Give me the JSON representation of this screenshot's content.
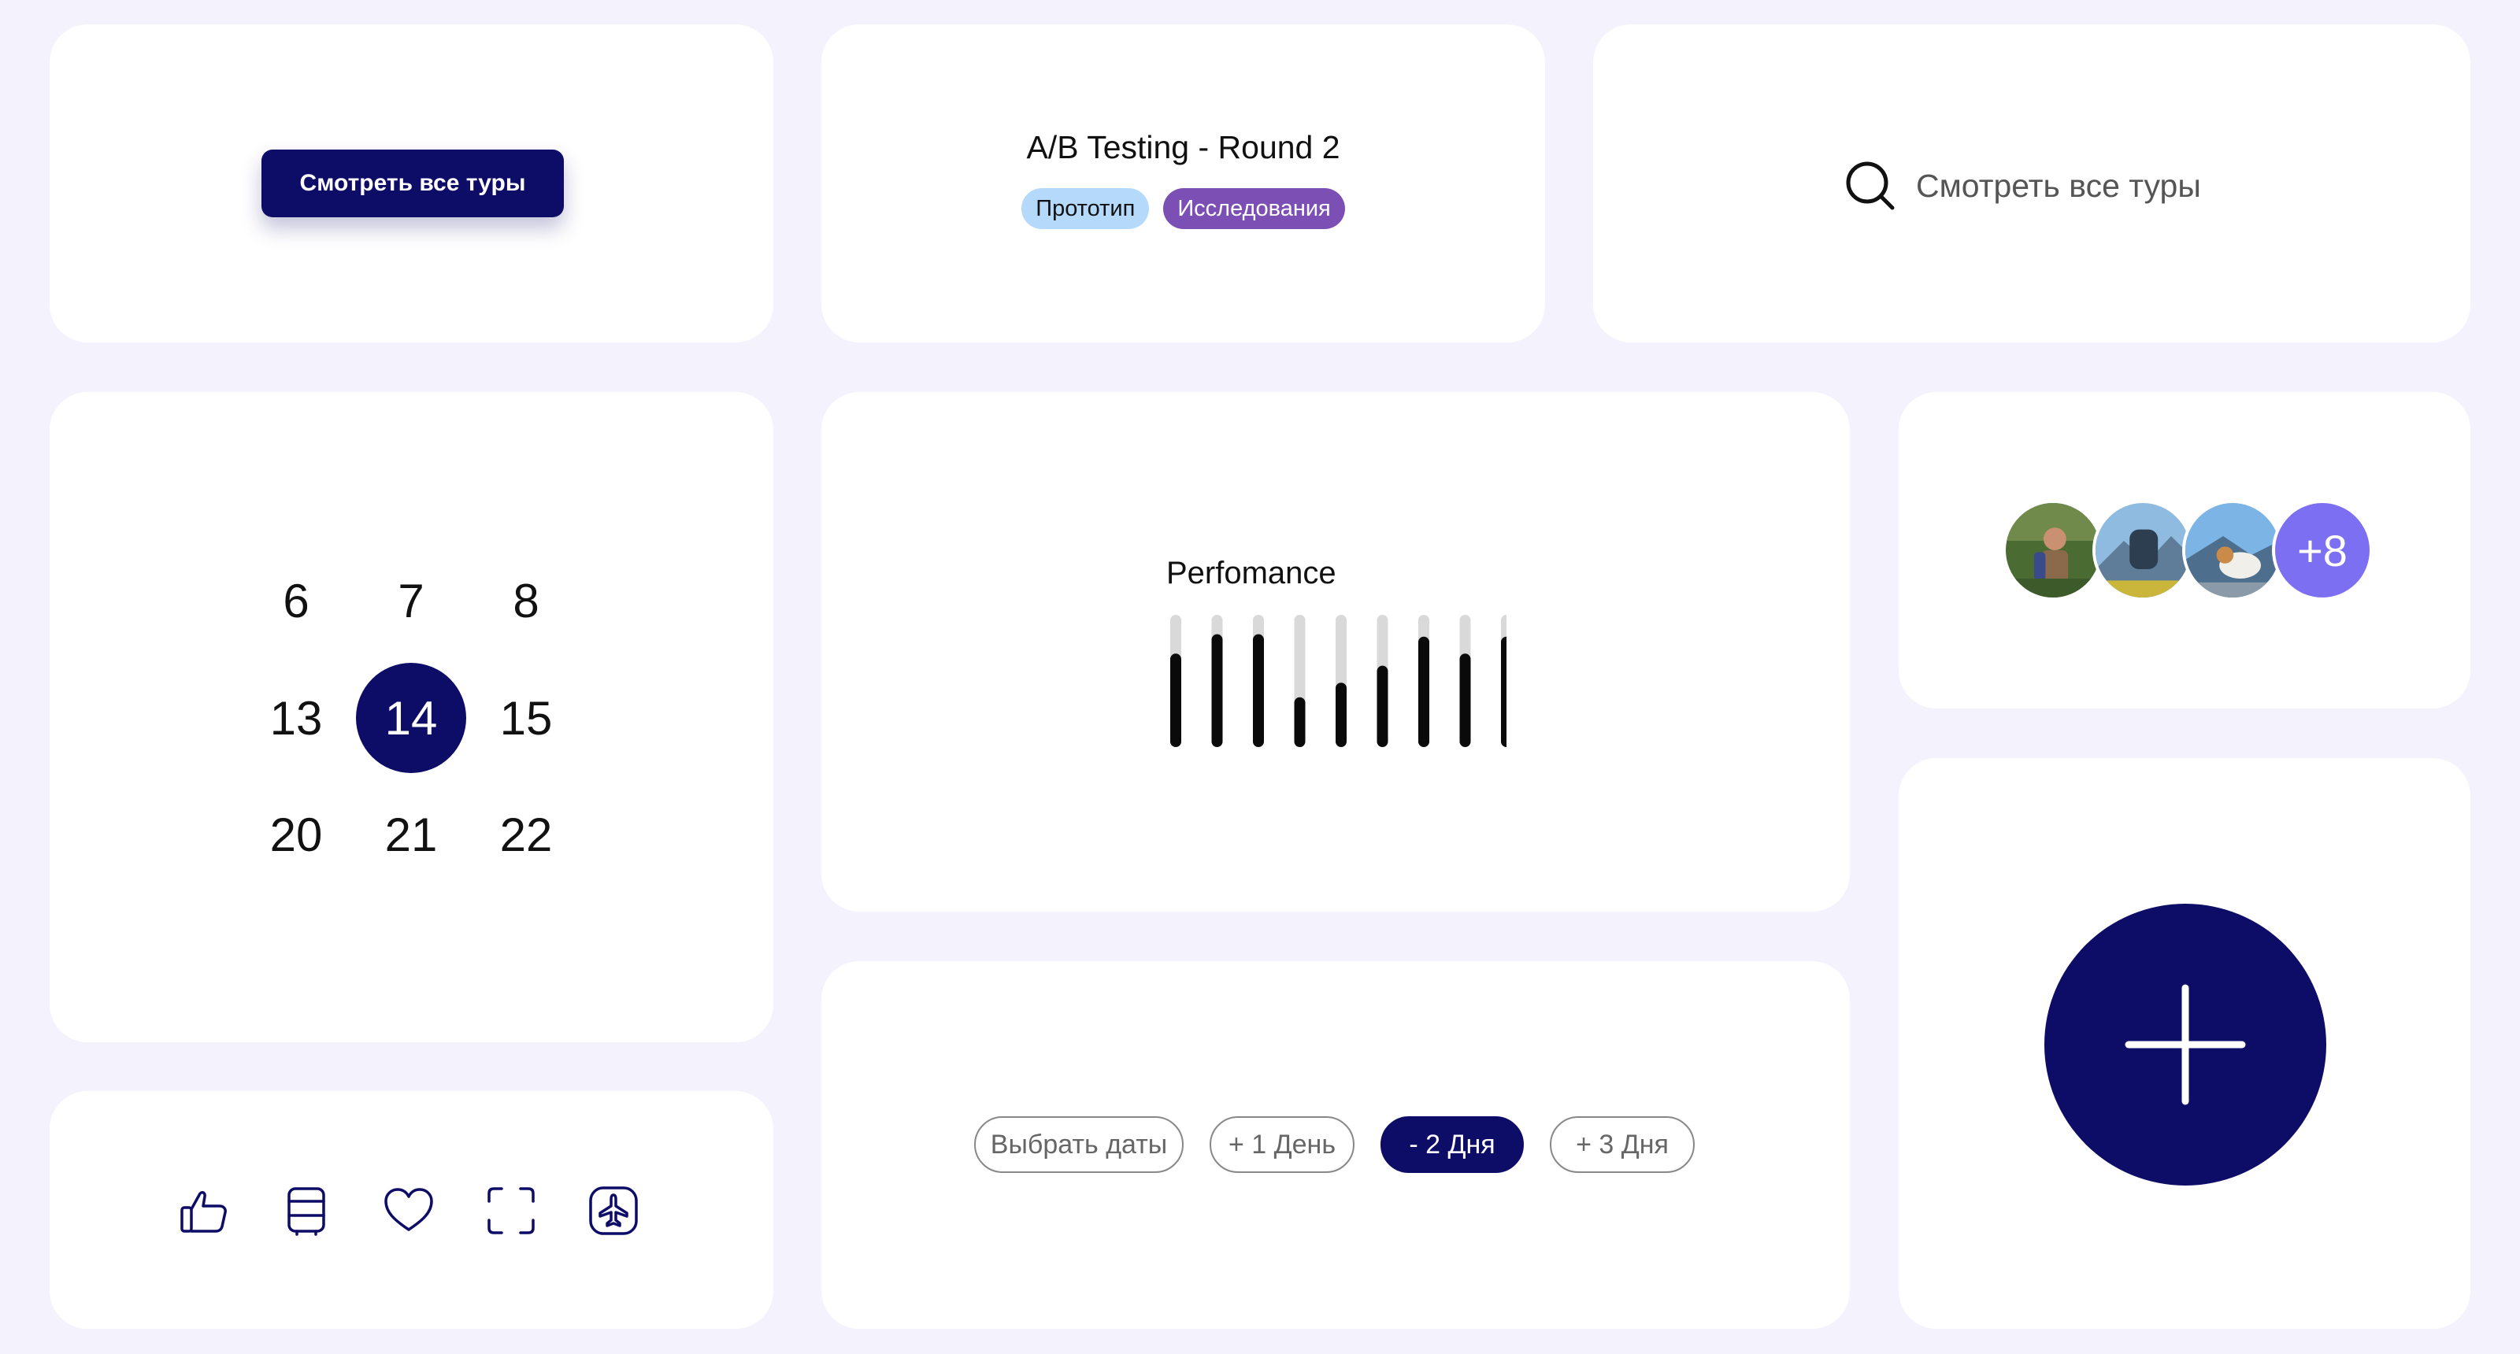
{
  "primary_button": {
    "label": "Смотреть все туры"
  },
  "ab_card": {
    "title": "A/B Testing - Round 2",
    "tags": [
      "Прототип",
      "Исследования"
    ]
  },
  "search": {
    "placeholder": "Смотреть все туры",
    "icon": "search-icon"
  },
  "calendar": {
    "days": [
      [
        "6",
        "7",
        "8"
      ],
      [
        "13",
        "14",
        "15"
      ],
      [
        "20",
        "21",
        "22"
      ]
    ],
    "selected": "14"
  },
  "performance": {
    "title": "Perfomance",
    "levels": [
      0.68,
      0.84,
      0.84,
      0.32,
      0.44,
      0.58,
      0.82,
      0.68,
      0.82
    ]
  },
  "avatars": {
    "more_label": "+8",
    "count_shown": 3
  },
  "date_chips": {
    "items": [
      "Выбрать даты",
      "+ 1 День",
      "- 2 Дня",
      "+ 3 Дня"
    ],
    "active_index": 2
  },
  "fab": {
    "icon": "plus-icon"
  },
  "icons_row": [
    "thumbs-up-icon",
    "luggage-icon",
    "heart-icon",
    "scan-icon",
    "airplane-icon"
  ],
  "colors": {
    "accent": "#0d0c66",
    "background": "#f3f2fd",
    "tag_light": "#b4d9fb",
    "tag_purple": "#7c4fb4",
    "avatar_more": "#7d6ff2"
  }
}
